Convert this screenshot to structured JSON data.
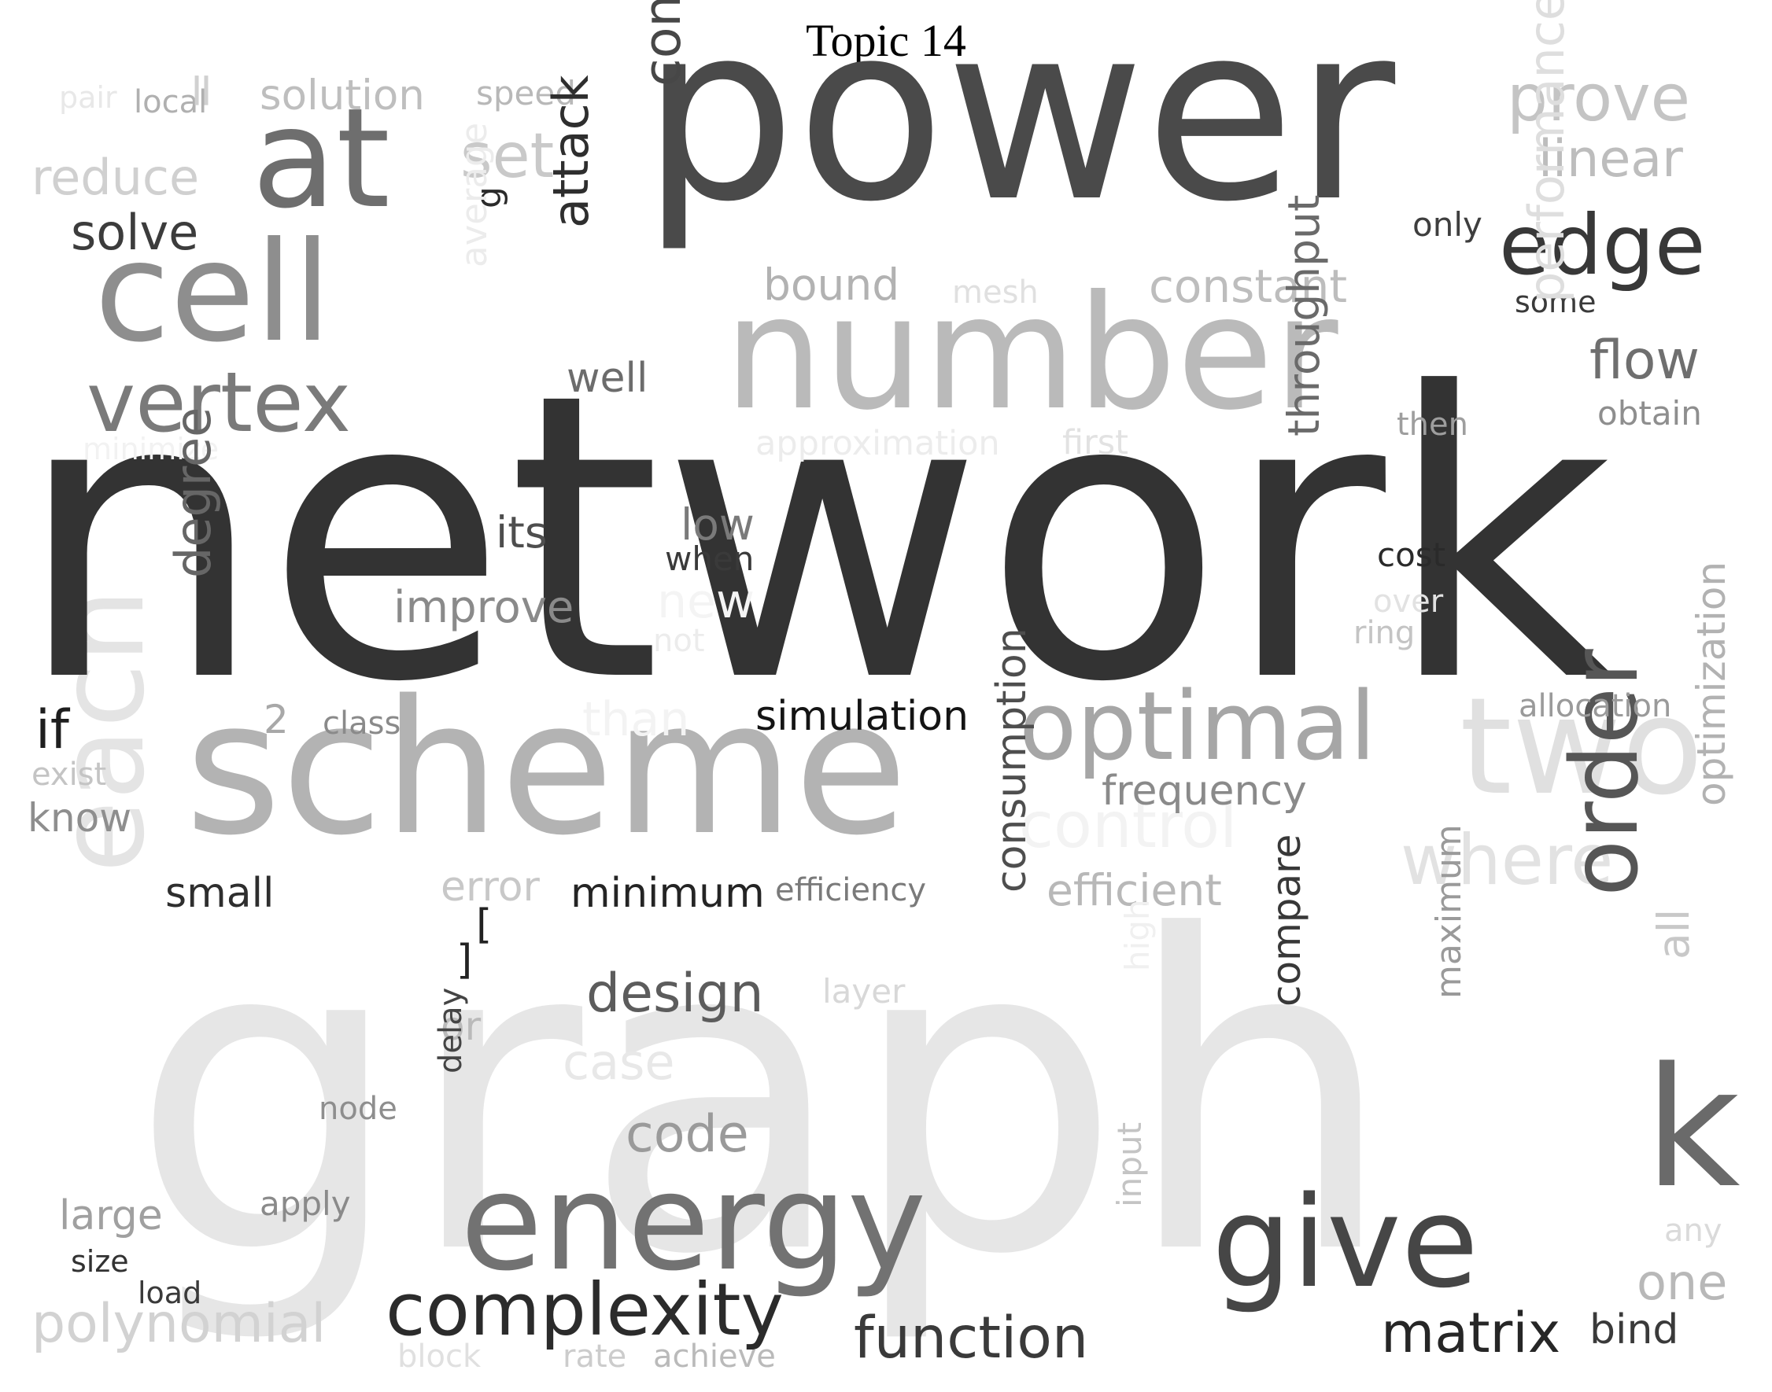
{
  "title": "Topic 14",
  "words": [
    {
      "text": "graph",
      "color": "#e6e6e6"
    },
    {
      "text": "each",
      "color": "#e4e4e4"
    },
    {
      "text": "control",
      "color": "#f3f3f3"
    },
    {
      "text": "where",
      "color": "#e2e2e2"
    },
    {
      "text": "two",
      "color": "#e0e0e0"
    },
    {
      "text": "network",
      "color": "#333333"
    },
    {
      "text": "power",
      "color": "#4a4a4a"
    },
    {
      "text": "number",
      "color": "#bababa"
    },
    {
      "text": "scheme",
      "color": "#b3b3b3"
    },
    {
      "text": "at",
      "color": "#6e6e6e"
    },
    {
      "text": "cell",
      "color": "#8e8e8e"
    },
    {
      "text": "vertex",
      "color": "#7a7a7a"
    },
    {
      "text": "optimal",
      "color": "#a6a6a6"
    },
    {
      "text": "energy",
      "color": "#727272"
    },
    {
      "text": "give",
      "color": "#464646"
    },
    {
      "text": "k",
      "color": "#6a6a6a"
    },
    {
      "text": "edge",
      "color": "#383838"
    },
    {
      "text": "order",
      "color": "#565656"
    },
    {
      "text": "complexity",
      "color": "#2b2b2b"
    },
    {
      "text": "function",
      "color": "#3a3a3a"
    },
    {
      "text": "matrix",
      "color": "#262626"
    },
    {
      "text": "design",
      "color": "#5c5c5c"
    },
    {
      "text": "code",
      "color": "#9a9a9a"
    },
    {
      "text": "polynomial",
      "color": "#d2d2d2"
    },
    {
      "text": "prove",
      "color": "#c4c4c4"
    },
    {
      "text": "linear",
      "color": "#bdbdbd"
    },
    {
      "text": "flow",
      "color": "#6f6f6f"
    },
    {
      "text": "set",
      "color": "#c9c9c9"
    },
    {
      "text": "reduce",
      "color": "#d0d0d0"
    },
    {
      "text": "solve",
      "color": "#3c3c3c"
    },
    {
      "text": "solution",
      "color": "#bebebe"
    },
    {
      "text": "speed",
      "color": "#b8b8b8"
    },
    {
      "text": "local",
      "color": "#b0b0b0"
    },
    {
      "text": "pair",
      "color": "#e8e8e8"
    },
    {
      "text": "=",
      "color": "#d0d0d0"
    },
    {
      "text": "g",
      "color": "#2a2a2a"
    },
    {
      "text": "consider",
      "color": "#474747"
    },
    {
      "text": "attack",
      "color": "#2e2e2e"
    },
    {
      "text": "average",
      "color": "#ececec"
    },
    {
      "text": "well",
      "color": "#6c6c6c"
    },
    {
      "text": "bound",
      "color": "#b2b2b2"
    },
    {
      "text": "mesh",
      "color": "#e0e0e0"
    },
    {
      "text": "constant",
      "color": "#bdbdbd"
    },
    {
      "text": "only",
      "color": "#3e3e3e"
    },
    {
      "text": "some",
      "color": "#3a3a3a"
    },
    {
      "text": "performance",
      "color": "#dedede"
    },
    {
      "text": "then",
      "color": "#9e9e9e"
    },
    {
      "text": "obtain",
      "color": "#8e8e8e"
    },
    {
      "text": "minimize",
      "color": "#f2f2f2"
    },
    {
      "text": "approximation",
      "color": "#ececec"
    },
    {
      "text": "first",
      "color": "#e2e2e2"
    },
    {
      "text": "its",
      "color": "#4e4e4e"
    },
    {
      "text": "low",
      "color": "#7a7a7a"
    },
    {
      "text": "when",
      "color": "#3a3a3a"
    },
    {
      "text": "improve",
      "color": "#8a8a8a"
    },
    {
      "text": "new",
      "color": "#f4f4f4"
    },
    {
      "text": "not",
      "color": "#ececec"
    },
    {
      "text": "throughput",
      "color": "#6a6a6a"
    },
    {
      "text": "cost",
      "color": "#2a2a2a"
    },
    {
      "text": "over",
      "color": "#e2e2e2"
    },
    {
      "text": "ring",
      "color": "#c4c4c4"
    },
    {
      "text": "degree",
      "color": "#666666"
    },
    {
      "text": "if",
      "color": "#1e1e1e"
    },
    {
      "text": "2",
      "color": "#a8a8a8"
    },
    {
      "text": "class",
      "color": "#8a8a8a"
    },
    {
      "text": "than",
      "color": "#f3f3f3"
    },
    {
      "text": "simulation",
      "color": "#141414"
    },
    {
      "text": "allocation",
      "color": "#9a9a9a"
    },
    {
      "text": "exist",
      "color": "#c4c4c4"
    },
    {
      "text": "know",
      "color": "#8e8e8e"
    },
    {
      "text": "frequency",
      "color": "#8a8a8a"
    },
    {
      "text": "small",
      "color": "#2e2e2e"
    },
    {
      "text": "error",
      "color": "#c8c8c8"
    },
    {
      "text": "minimum",
      "color": "#242424"
    },
    {
      "text": "efficiency",
      "color": "#7a7a7a"
    },
    {
      "text": "efficient",
      "color": "#b8b8b8"
    },
    {
      "text": "[",
      "color": "#222222"
    },
    {
      "text": "]",
      "color": "#222222"
    },
    {
      "text": "consumption",
      "color": "#4e4e4e"
    },
    {
      "text": "all",
      "color": "#c8c8c8"
    },
    {
      "text": "optimization",
      "color": "#b2b2b2"
    },
    {
      "text": "layer",
      "color": "#d8d8d8"
    },
    {
      "text": "or",
      "color": "#bababa"
    },
    {
      "text": "case",
      "color": "#e8e8e8"
    },
    {
      "text": "high",
      "color": "#f0f0f0"
    },
    {
      "text": "node",
      "color": "#8e8e8e"
    },
    {
      "text": "delay",
      "color": "#444444"
    },
    {
      "text": "compare",
      "color": "#383838"
    },
    {
      "text": "maximum",
      "color": "#9a9a9a"
    },
    {
      "text": "any",
      "color": "#dadada"
    },
    {
      "text": "one",
      "color": "#b8b8b8"
    },
    {
      "text": "large",
      "color": "#a0a0a0"
    },
    {
      "text": "apply",
      "color": "#8a8a8a"
    },
    {
      "text": "size",
      "color": "#323232"
    },
    {
      "text": "load",
      "color": "#3a3a3a"
    },
    {
      "text": "input",
      "color": "#c4c4c4"
    },
    {
      "text": "block",
      "color": "#e0e0e0"
    },
    {
      "text": "rate",
      "color": "#cccccc"
    },
    {
      "text": "achieve",
      "color": "#bababa"
    },
    {
      "text": "bind",
      "color": "#3a3a3a"
    }
  ]
}
